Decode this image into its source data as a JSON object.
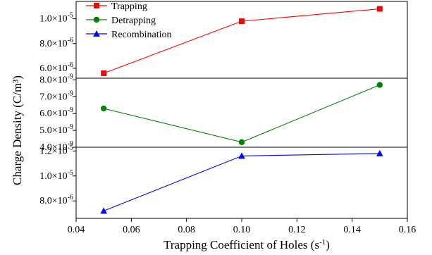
{
  "chart_data": {
    "type": "line",
    "title": "",
    "xlabel": "Trapping Coefficient of Holes (s",
    "xlabel_sup": "-1",
    "xlabel_end": ")",
    "ylabel": "Charge Density (C/m³)",
    "x": [
      0.05,
      0.1,
      0.15
    ],
    "xlim": [
      0.04,
      0.16
    ],
    "x_ticks": [
      "0.04",
      "0.06",
      "0.08",
      "0.10",
      "0.12",
      "0.14",
      "0.16"
    ],
    "legend_position": "top-left",
    "panels": [
      {
        "name": "Trapping",
        "color": "#ff0000",
        "marker": "square",
        "values": [
          5.6e-06,
          9.8e-06,
          1.08e-05
        ],
        "ylim": [
          5.2e-06,
          1.14e-05
        ],
        "ticks": [
          {
            "value": 6e-06,
            "mantissa": "6.0",
            "exp": "-6"
          },
          {
            "value": 8e-06,
            "mantissa": "8.0",
            "exp": "-6"
          },
          {
            "value": 1e-05,
            "mantissa": "1.0",
            "exp": "-5"
          }
        ]
      },
      {
        "name": "Detrapping",
        "color": "#008000",
        "marker": "circle",
        "values": [
          6.3e-09,
          4.3e-09,
          7.7e-09
        ],
        "ylim": [
          4e-09,
          8.1e-09
        ],
        "ticks": [
          {
            "value": 4e-09,
            "mantissa": "4.0",
            "exp": "-9"
          },
          {
            "value": 5e-09,
            "mantissa": "5.0",
            "exp": "-9"
          },
          {
            "value": 6e-09,
            "mantissa": "6.0",
            "exp": "-9"
          },
          {
            "value": 7e-09,
            "mantissa": "7.0",
            "exp": "-9"
          },
          {
            "value": 8e-09,
            "mantissa": "8.0",
            "exp": "-9"
          }
        ]
      },
      {
        "name": "Recombination",
        "color": "#0000ff",
        "marker": "triangle",
        "values": [
          7.2e-06,
          1.16e-05,
          1.18e-05
        ],
        "ylim": [
          6.6e-06,
          1.23e-05
        ],
        "ticks": [
          {
            "value": 8e-06,
            "mantissa": "8.0",
            "exp": "-6"
          },
          {
            "value": 1e-05,
            "mantissa": "1.0",
            "exp": "-5"
          },
          {
            "value": 1.2e-05,
            "mantissa": "1.2",
            "exp": "-5"
          }
        ]
      }
    ]
  }
}
